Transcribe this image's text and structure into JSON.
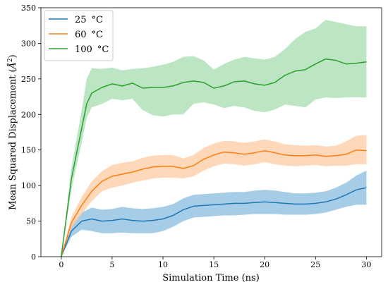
{
  "chart_data": {
    "type": "line",
    "title": "",
    "xlabel": "Simulation Time (ns)",
    "ylabel": "Mean Squared Displacement (Å²)",
    "ylabel_parts": {
      "before": "Mean Squared Displacement (",
      "symbol": "Å",
      "power": "2",
      "after": ")"
    },
    "xlim": [
      -2,
      31.5
    ],
    "ylim": [
      0,
      350
    ],
    "xticks": [
      0,
      5,
      10,
      15,
      20,
      25,
      30
    ],
    "yticks": [
      0,
      50,
      100,
      150,
      200,
      250,
      300,
      350
    ],
    "grid": false,
    "legend_position": "top-left",
    "series": [
      {
        "name": "25 °C",
        "label_parts": {
          "value": "25",
          "unit": "°C"
        },
        "color": "#1f77b4",
        "band_color": "#7fb8dd",
        "x": [
          0,
          1,
          2,
          3,
          4,
          5,
          6,
          7,
          8,
          9,
          10,
          11,
          12,
          13,
          14,
          15,
          16,
          17,
          18,
          19,
          20,
          21,
          22,
          23,
          24,
          25,
          26,
          27,
          28,
          29,
          30
        ],
        "mean": [
          0,
          36,
          50,
          53,
          50,
          51,
          53,
          51,
          50,
          51,
          53,
          58,
          66,
          71,
          72,
          73,
          74,
          75,
          75,
          76,
          77,
          76,
          75,
          74,
          74,
          75,
          77,
          81,
          87,
          94,
          97
        ],
        "lower": [
          0,
          28,
          38,
          36,
          33,
          33,
          34,
          33,
          33,
          33,
          36,
          42,
          50,
          55,
          56,
          57,
          58,
          58,
          59,
          60,
          60,
          60,
          59,
          59,
          59,
          60,
          62,
          66,
          70,
          73,
          73
        ],
        "upper": [
          0,
          44,
          62,
          69,
          66,
          67,
          70,
          68,
          67,
          68,
          70,
          74,
          82,
          87,
          88,
          89,
          90,
          91,
          91,
          93,
          94,
          93,
          91,
          89,
          89,
          90,
          92,
          97,
          104,
          114,
          121
        ]
      },
      {
        "name": "60 °C",
        "label_parts": {
          "value": "60",
          "unit": "°C"
        },
        "color": "#ff7f0e",
        "band_color": "#ffc69b",
        "x": [
          0,
          1,
          2,
          3,
          4,
          5,
          6,
          7,
          8,
          9,
          10,
          11,
          12,
          13,
          14,
          15,
          16,
          17,
          18,
          19,
          20,
          21,
          22,
          23,
          24,
          25,
          26,
          27,
          28,
          29,
          30
        ],
        "mean": [
          0,
          48,
          72,
          92,
          106,
          113,
          116,
          119,
          123,
          126,
          127,
          127,
          124,
          128,
          137,
          143,
          147,
          146,
          144,
          146,
          149,
          146,
          143,
          142,
          142,
          143,
          141,
          142,
          144,
          150,
          149
        ],
        "lower": [
          0,
          40,
          60,
          78,
          92,
          97,
          100,
          104,
          107,
          110,
          111,
          111,
          110,
          113,
          121,
          127,
          131,
          130,
          128,
          130,
          133,
          130,
          128,
          127,
          128,
          129,
          127,
          128,
          128,
          130,
          130
        ],
        "upper": [
          0,
          56,
          84,
          106,
          120,
          129,
          132,
          134,
          139,
          142,
          143,
          143,
          138,
          143,
          153,
          159,
          163,
          162,
          160,
          162,
          165,
          162,
          158,
          157,
          156,
          157,
          155,
          156,
          162,
          170,
          171
        ]
      },
      {
        "name": "100 °C",
        "label_parts": {
          "value": "100",
          "unit": "°C"
        },
        "color": "#2ca02c",
        "band_color": "#9fdaa9",
        "x": [
          0,
          1,
          2,
          2.5,
          3,
          4,
          5,
          6,
          7,
          8,
          9,
          10,
          11,
          12,
          13,
          14,
          15,
          16,
          17,
          18,
          19,
          20,
          21,
          22,
          23,
          24,
          25,
          26,
          27,
          28,
          29,
          30
        ],
        "mean": [
          0,
          110,
          180,
          215,
          230,
          238,
          243,
          240,
          244,
          237,
          238,
          238,
          240,
          245,
          247,
          245,
          237,
          240,
          246,
          247,
          243,
          241,
          245,
          255,
          261,
          263,
          271,
          278,
          276,
          271,
          272,
          274
        ],
        "lower": [
          0,
          95,
          160,
          195,
          210,
          215,
          222,
          220,
          222,
          206,
          199,
          197,
          200,
          200,
          215,
          217,
          214,
          209,
          212,
          210,
          205,
          203,
          207,
          214,
          212,
          210,
          221,
          224,
          223,
          224,
          224,
          224
        ],
        "upper": [
          0,
          125,
          205,
          250,
          265,
          264,
          266,
          262,
          264,
          265,
          267,
          270,
          274,
          281,
          282,
          276,
          263,
          271,
          277,
          281,
          279,
          277,
          281,
          292,
          306,
          316,
          321,
          333,
          330,
          327,
          324,
          324
        ]
      }
    ]
  }
}
